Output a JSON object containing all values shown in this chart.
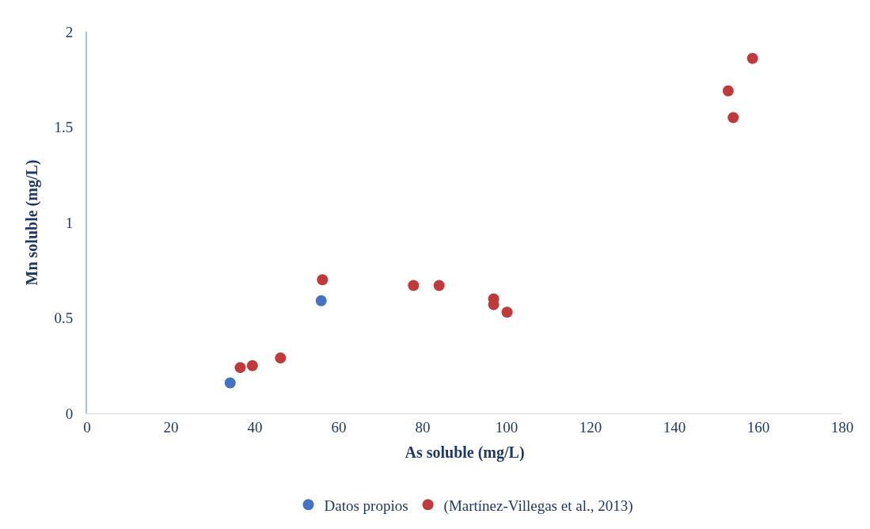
{
  "chart_data": {
    "type": "scatter",
    "xlabel": "As soluble (mg/L)",
    "ylabel": "Mn soluble (mg/L)",
    "xlim": [
      0,
      180
    ],
    "xticks": [
      0,
      20,
      40,
      60,
      80,
      100,
      120,
      140,
      160,
      180
    ],
    "ylim": [
      0,
      2
    ],
    "yticks": [
      0,
      0.5,
      1,
      1.5,
      2
    ],
    "legend": "bottom",
    "marker": "circle",
    "series": [
      {
        "name": "Datos propios",
        "color": "#4472c4",
        "x": [
          34.1,
          55.8
        ],
        "values": [
          0.16,
          0.59
        ]
      },
      {
        "name": "(Martínez-Villegas et al., 2013)",
        "color": "#c0393b",
        "x": [
          36.5,
          39.4,
          46.1,
          56.1,
          77.8,
          83.9,
          96.9,
          96.9,
          100.1,
          152.8,
          154.0,
          158.6
        ],
        "values": [
          0.24,
          0.25,
          0.29,
          0.7,
          0.67,
          0.67,
          0.6,
          0.57,
          0.53,
          1.69,
          1.55,
          1.86
        ]
      }
    ]
  }
}
